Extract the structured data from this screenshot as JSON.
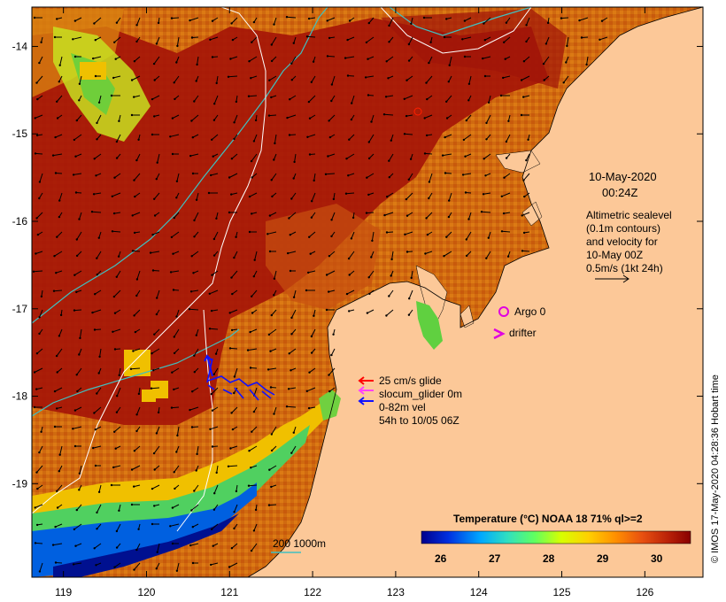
{
  "map": {
    "lon_ticks": [
      "119",
      "120",
      "121",
      "122",
      "123",
      "124",
      "125",
      "126"
    ],
    "lat_ticks": [
      "-14",
      "-15",
      "-16",
      "-17",
      "-18",
      "-19"
    ],
    "lon_range": [
      118.62,
      126.7
    ],
    "lat_range": [
      -20.07,
      -13.55
    ]
  },
  "info_box": {
    "date": "10-May-2020",
    "time": "00:24Z",
    "altimetry_lines": [
      "Altimetric sealevel",
      "(0.1m contours)",
      "and velocity for",
      "10-May 00Z",
      "0.5m/s (1kt 24h)"
    ]
  },
  "markers": {
    "argo": "Argo 0",
    "drifter": "drifter"
  },
  "glider_legend": {
    "line1": "25 cm/s glide",
    "line2": "slocum_glider 0m",
    "line3": "0-82m vel",
    "line4": "54h to 10/05 06Z"
  },
  "colorbar": {
    "title": "Temperature (°C) NOAA 18 71% ql>=2",
    "ticks": [
      "26",
      "27",
      "28",
      "29",
      "30"
    ],
    "colors": [
      "#00008c",
      "#0040ff",
      "#00c0ff",
      "#40ff80",
      "#c0ff00",
      "#ffd000",
      "#ff8000",
      "#e04000",
      "#a00000",
      "#800000"
    ]
  },
  "depth_legend": {
    "label": "200  1000m"
  },
  "credit": "© IMOS 17-May-2020 04:28:36 Hobart time",
  "colors": {
    "land": "#fcc898",
    "warm": "#a8180a",
    "mid": "#d06010",
    "cool": "#e8a000",
    "vector": "#000000",
    "glider_blue": "#1010ff",
    "glider_red": "#ff0000",
    "argo": "#e000e0",
    "contour_200m": "#40c0c0",
    "contour_1000m": "#ffffff"
  }
}
